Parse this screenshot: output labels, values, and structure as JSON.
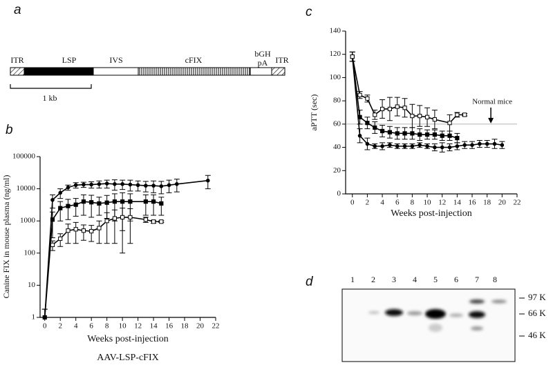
{
  "panels": [
    "a",
    "b",
    "c",
    "d"
  ],
  "construct": {
    "segments": [
      "ITR",
      "LSP",
      "IVS",
      "cFIX",
      "bGH",
      "pA",
      "ITR"
    ],
    "scale_bar": "1 kb"
  },
  "chart_data": [
    {
      "type": "line",
      "ylabel": "Canine FIX in mouse plasma (ng/ml)",
      "xlabel": "Weeks post-injection",
      "caption": "AAV-LSP-cFIX",
      "log_scale": true,
      "xlim": [
        -0.6,
        22
      ],
      "xticks": [
        0,
        2,
        4,
        6,
        8,
        10,
        12,
        14,
        16,
        18,
        20,
        22
      ],
      "ylim": [
        1,
        100000
      ],
      "yticks": [
        1,
        10,
        100,
        1000,
        10000,
        100000
      ],
      "series": [
        {
          "marker": "circle-filled",
          "color": "#000",
          "x": [
            0,
            1,
            2,
            3,
            4,
            5,
            6,
            7,
            8,
            9,
            10,
            11,
            12,
            13,
            14,
            15,
            16,
            17,
            21
          ],
          "values": [
            1,
            4500,
            7500,
            11000,
            13000,
            13500,
            13500,
            14000,
            14500,
            14000,
            14000,
            13500,
            13000,
            12500,
            12500,
            12000,
            13000,
            14000,
            18000
          ],
          "errors": [
            0.8,
            2000,
            2500,
            2000,
            2500,
            2500,
            3000,
            3500,
            4000,
            5000,
            4500,
            5000,
            4500,
            4500,
            5000,
            5000,
            5500,
            6000,
            8000
          ]
        },
        {
          "marker": "square-filled",
          "color": "#000",
          "x": [
            0,
            1,
            2,
            3,
            4,
            5,
            6,
            7,
            8,
            9,
            10,
            11,
            13,
            14,
            15
          ],
          "values": [
            1,
            1100,
            2500,
            2900,
            3200,
            4000,
            3800,
            3500,
            3700,
            4000,
            4000,
            4000,
            4000,
            4000,
            3500
          ],
          "errors": [
            0.8,
            800,
            1500,
            1800,
            1800,
            2500,
            2500,
            2000,
            2500,
            3000,
            3500,
            3000,
            2500,
            2500,
            2000
          ]
        },
        {
          "marker": "square-open",
          "color": "#000",
          "x": [
            1,
            2,
            3,
            4,
            5,
            6,
            7,
            8,
            9,
            10,
            11,
            13,
            14,
            15
          ],
          "values": [
            180,
            280,
            500,
            550,
            500,
            480,
            600,
            1000,
            1200,
            1300,
            1300,
            1100,
            950,
            950
          ],
          "errors": [
            60,
            120,
            300,
            350,
            250,
            250,
            400,
            800,
            1000,
            1200,
            1100,
            200,
            100,
            60
          ]
        }
      ]
    },
    {
      "type": "line",
      "ylabel": "aPTT (sec)",
      "xlabel": "Weeks post-injection",
      "annotation": "Normal mice",
      "xlim": [
        -0.9,
        22
      ],
      "xticks": [
        0,
        2,
        4,
        6,
        8,
        10,
        12,
        14,
        16,
        18,
        20,
        22
      ],
      "ylim": [
        0,
        140
      ],
      "yticks": [
        0,
        20,
        40,
        60,
        80,
        100,
        120,
        140
      ],
      "hline": 60,
      "series": [
        {
          "marker": "circle-filled",
          "color": "#000",
          "x": [
            0,
            1,
            2,
            3,
            4,
            5,
            6,
            7,
            8,
            9,
            10,
            11,
            12,
            13,
            14,
            15,
            16,
            17,
            18,
            19,
            20
          ],
          "values": [
            118,
            50,
            43,
            41,
            41,
            42,
            41,
            41,
            41,
            42,
            41,
            40,
            40,
            40,
            41,
            42,
            42,
            43,
            43,
            43,
            42
          ],
          "errors": [
            4,
            6,
            5,
            2,
            3,
            2,
            2,
            2,
            2,
            2,
            2,
            3,
            4,
            3,
            3,
            3,
            3,
            3,
            3,
            4,
            3
          ]
        },
        {
          "marker": "square-filled",
          "color": "#000",
          "x": [
            0,
            1,
            2,
            3,
            4,
            5,
            6,
            7,
            8,
            9,
            10,
            11,
            12,
            13,
            14
          ],
          "values": [
            118,
            66,
            61,
            57,
            54,
            53,
            52,
            52,
            52,
            51,
            51,
            51,
            50,
            50,
            48
          ],
          "errors": [
            4,
            6,
            5,
            5,
            5,
            5,
            5,
            5,
            5,
            5,
            4,
            4,
            4,
            4,
            4
          ]
        },
        {
          "marker": "square-open",
          "color": "#000",
          "x": [
            0,
            1,
            2,
            3,
            4,
            5,
            6,
            7,
            8,
            9,
            10,
            11,
            13,
            14,
            15
          ],
          "values": [
            118,
            85,
            82,
            68,
            73,
            73,
            75,
            74,
            67,
            67,
            66,
            64,
            61,
            68,
            68
          ],
          "errors": [
            4,
            3,
            3,
            4,
            8,
            10,
            8,
            8,
            10,
            9,
            8,
            8,
            7,
            2,
            1
          ]
        }
      ]
    }
  ],
  "blot": {
    "lanes": [
      "1",
      "2",
      "3",
      "4",
      "5",
      "6",
      "7",
      "8"
    ],
    "markers": [
      "97 K",
      "66 K",
      "46 K"
    ]
  }
}
